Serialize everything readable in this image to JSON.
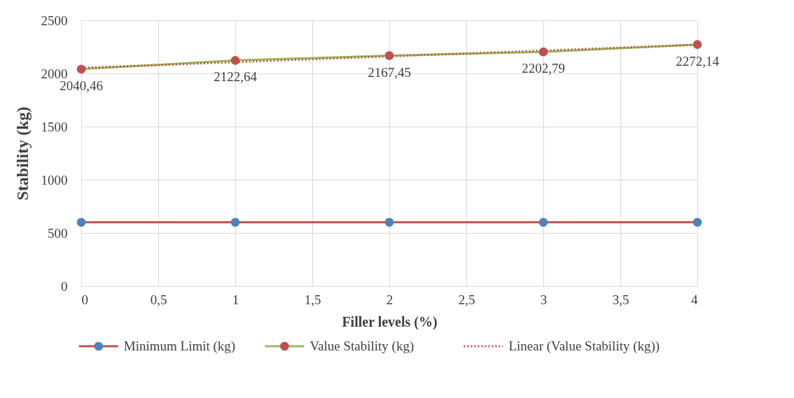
{
  "chart_data": {
    "type": "line",
    "xlabel": "Filler levels (%)",
    "ylabel": "Stability (kg)",
    "xlim": [
      0,
      4
    ],
    "xticks": [
      0,
      {
        "value": 0.5,
        "label": "0,5"
      },
      1,
      {
        "value": 1.5,
        "label": "1,5"
      },
      2,
      {
        "value": 2.5,
        "label": "2,5"
      },
      3,
      {
        "value": 3.5,
        "label": "3,5"
      },
      4
    ],
    "ylim": [
      0,
      2500
    ],
    "yticks": [
      0,
      500,
      1000,
      1500,
      2000,
      2500
    ],
    "grid": true,
    "legend": "bottom",
    "x": [
      0,
      1,
      2,
      3,
      4
    ],
    "series": [
      {
        "name": "Minimum Limit (kg)",
        "color": "#c0504d",
        "colors": [
          "#4f81bd",
          "#4f81bd",
          "#4f81bd",
          "#4f81bd",
          "#4f81bd"
        ],
        "marker": "circle",
        "line_style": "solid",
        "values": [
          600,
          600,
          600,
          600,
          600
        ]
      },
      {
        "name": "Value Stability (kg)",
        "color": "#9bbb59",
        "colors": [
          "#c0504d",
          "#c0504d",
          "#c0504d",
          "#c0504d",
          "#c0504d"
        ],
        "marker": "circle",
        "line_style": "solid",
        "values": [
          2040.46,
          2122.64,
          2167.45,
          2202.79,
          2272.14
        ],
        "value_labels": [
          "2040,46",
          "2122,64",
          "2167,45",
          "2202,79",
          "2272,14"
        ]
      },
      {
        "name": "Linear (Value Stability (kg))",
        "color": "#c0504d",
        "marker": "none",
        "line_style": "dotted",
        "x": [
          0,
          4
        ],
        "values": [
          2052,
          2270
        ]
      }
    ]
  }
}
